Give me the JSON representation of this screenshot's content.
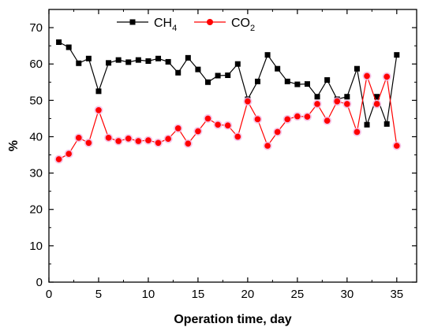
{
  "chart_data": {
    "type": "line",
    "xlabel": "Operation time, day",
    "ylabel": "%",
    "xlim": [
      0,
      37
    ],
    "ylim": [
      0,
      75
    ],
    "x_ticks": [
      0,
      5,
      10,
      15,
      20,
      25,
      30,
      35
    ],
    "y_ticks": [
      0,
      10,
      20,
      30,
      40,
      50,
      60,
      70
    ],
    "grid": false,
    "legend_position": "top-center",
    "x": [
      1,
      2,
      3,
      4,
      5,
      6,
      7,
      8,
      9,
      10,
      11,
      12,
      13,
      14,
      15,
      16,
      17,
      18,
      19,
      20,
      21,
      22,
      23,
      24,
      25,
      26,
      27,
      28,
      29,
      30,
      31,
      32,
      33,
      34,
      35
    ],
    "series": [
      {
        "name": "CH4",
        "legend_main": "CH",
        "legend_sub": "4",
        "color": "#000000",
        "marker": "square",
        "values": [
          66.0,
          64.6,
          60.2,
          61.5,
          52.5,
          60.3,
          61.1,
          60.5,
          61.1,
          60.8,
          61.5,
          60.6,
          57.6,
          61.7,
          58.5,
          55.0,
          56.8,
          56.9,
          60.0,
          50.3,
          55.2,
          62.5,
          58.7,
          55.2,
          54.4,
          54.5,
          51.0,
          55.6,
          50.3,
          51.0,
          58.7,
          43.3,
          51.0,
          43.5,
          62.5
        ]
      },
      {
        "name": "CO2",
        "legend_main": "CO",
        "legend_sub": "2",
        "color": "#ff0000",
        "marker": "circle",
        "values": [
          33.8,
          35.3,
          39.7,
          38.3,
          47.3,
          39.7,
          38.8,
          39.5,
          38.8,
          39.0,
          38.3,
          39.4,
          42.3,
          38.1,
          41.5,
          45.0,
          43.3,
          43.1,
          40.0,
          49.7,
          44.8,
          37.5,
          41.3,
          44.8,
          45.6,
          45.5,
          49.0,
          44.4,
          49.7,
          49.0,
          41.3,
          56.7,
          49.0,
          56.5,
          37.5
        ]
      }
    ]
  }
}
